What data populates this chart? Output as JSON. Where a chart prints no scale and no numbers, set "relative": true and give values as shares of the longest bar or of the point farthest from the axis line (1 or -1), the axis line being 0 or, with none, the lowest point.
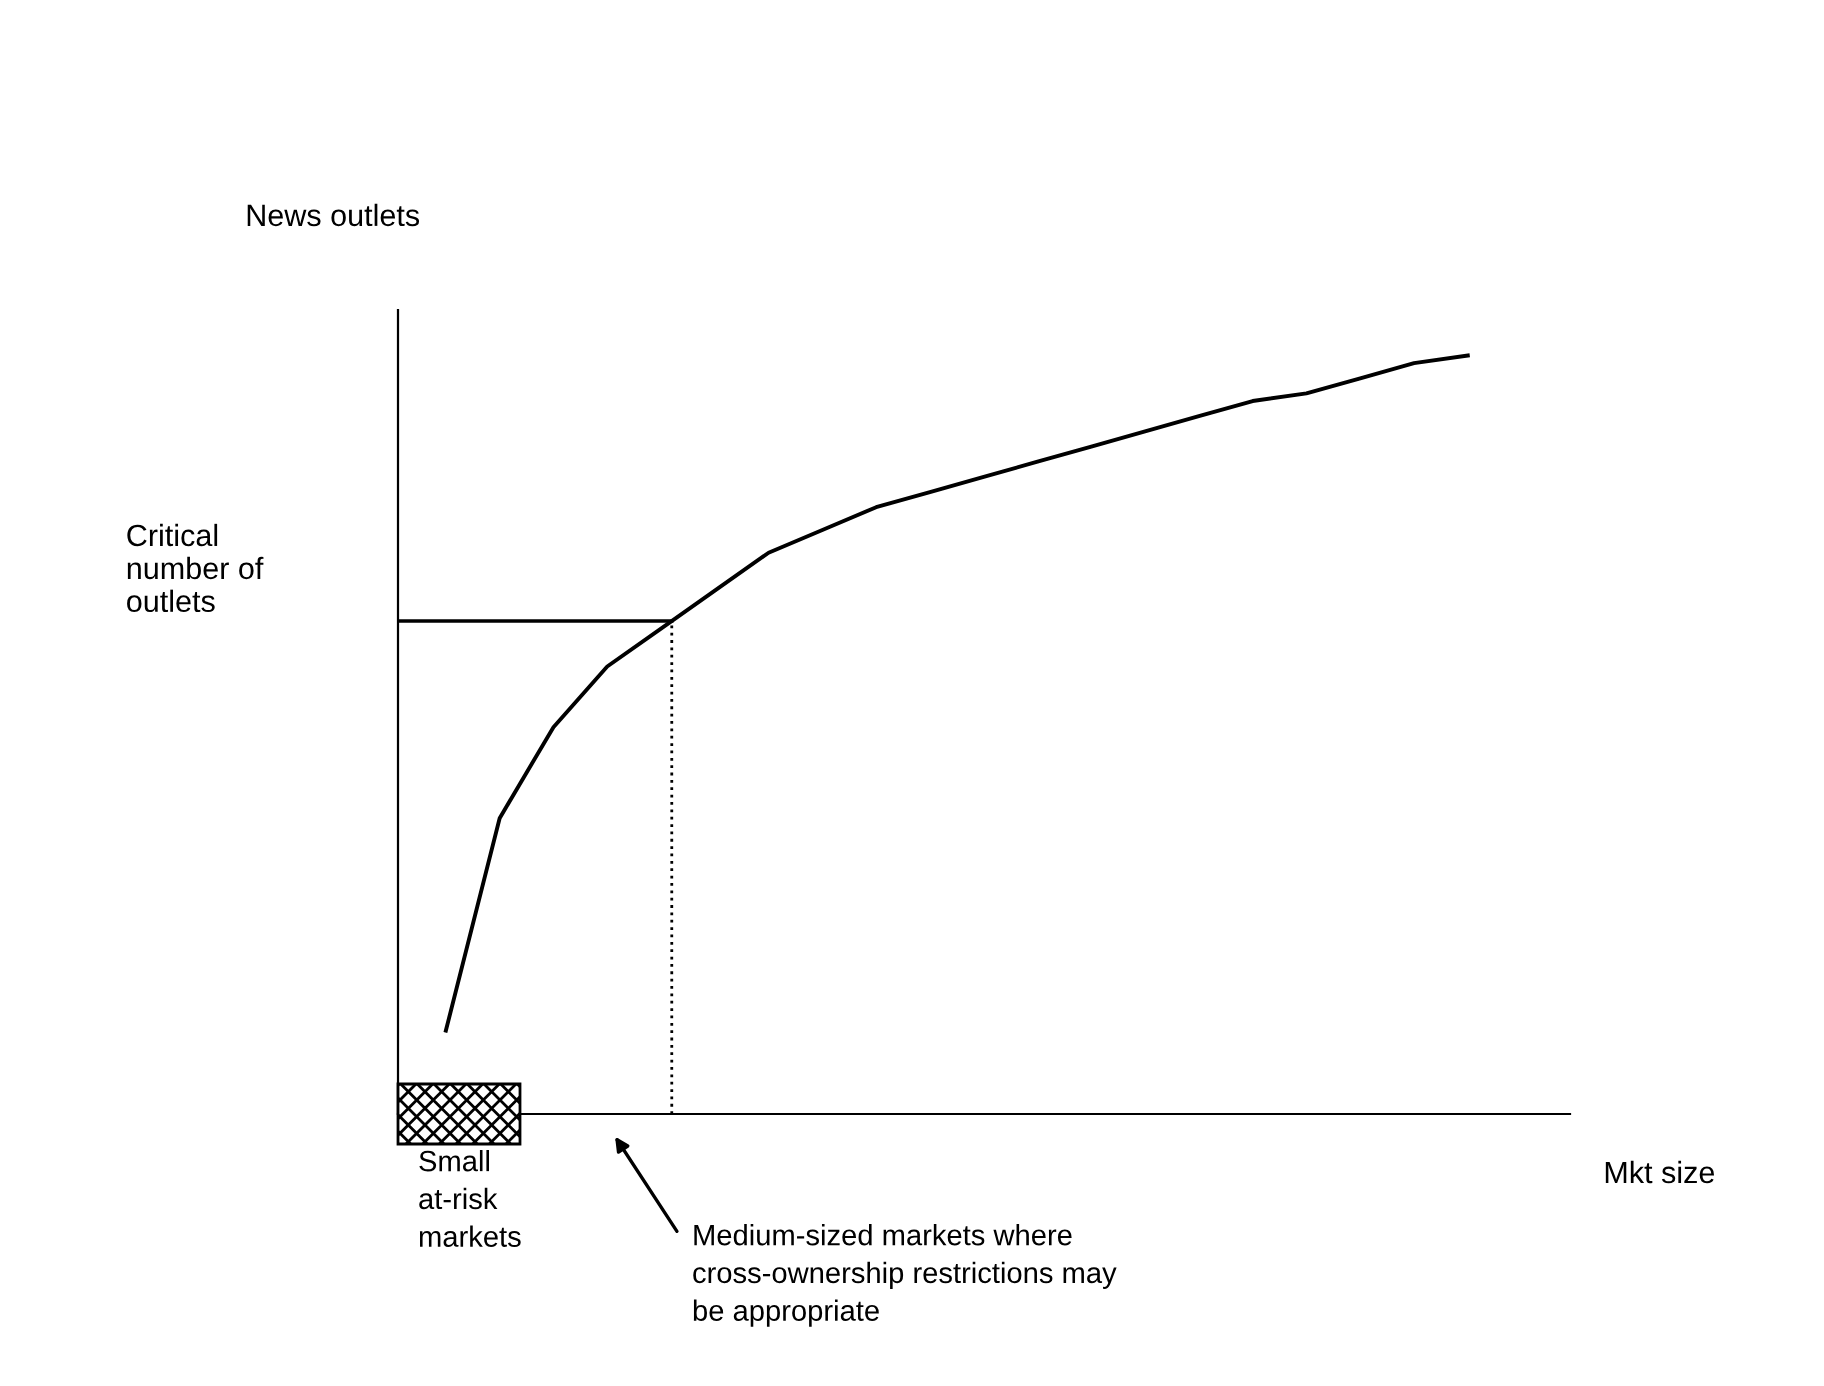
{
  "chart_data": {
    "type": "line",
    "relative": true,
    "ylabel": "News outlets",
    "xlabel": "Mkt size",
    "categories": [
      null,
      null,
      null,
      null,
      null,
      null,
      null,
      null,
      null,
      null,
      null,
      null,
      null,
      null,
      null,
      null,
      null,
      null,
      null,
      null
    ],
    "series": [
      {
        "color": "#000000",
        "values": [
          0.11,
          0.39,
          0.51,
          0.59,
          0.64,
          0.69,
          0.74,
          0.77,
          0.8,
          0.82,
          0.84,
          0.86,
          0.88,
          0.9,
          0.92,
          0.94,
          0.95,
          0.97,
          0.99,
          1
        ]
      }
    ],
    "ref_lines": [
      {
        "axis": "y",
        "value": 0.65,
        "label": "Critical\nnumber of\noutlets",
        "color": "#000000",
        "line_style": "solid"
      }
    ],
    "annotations": [
      "Small\nat-risk\nmarkets",
      "Medium-sized markets where\ncross-ownership restrictions may\nbe appropriate"
    ],
    "grid": false,
    "marker": "none",
    "line_style": "solid"
  }
}
